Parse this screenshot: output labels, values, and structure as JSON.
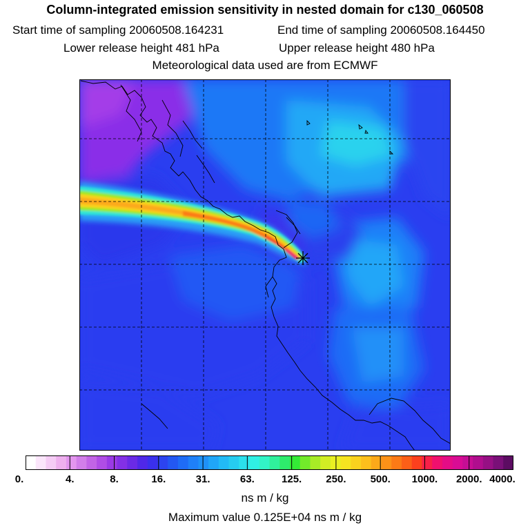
{
  "header": {
    "title": "Column-integrated emission sensitivity in nested domain for c130_060508",
    "start_label": "Start time of sampling 20060508.164231",
    "end_label": "End time of sampling 20060508.164450",
    "lower_label": "Lower release height  481 hPa",
    "upper_label": "Upper release height  480 hPa",
    "met_label": "Meteorological data used are from ECMWF"
  },
  "colorbar": {
    "tick_labels": [
      "0.",
      "4.",
      "8.",
      "16.",
      "31.",
      "63.",
      "125.",
      "250.",
      "500.",
      "1000.",
      "2000.",
      "4000."
    ],
    "colors": [
      "#ffffff",
      "#fbe6fb",
      "#f5ccf5",
      "#eeb0ee",
      "#e396ee",
      "#d27ee9",
      "#c264e6",
      "#b04de6",
      "#9a3ae6",
      "#8330e6",
      "#6a2ae6",
      "#4f28e8",
      "#3a30ec",
      "#2c44f0",
      "#2358f3",
      "#1f6cf6",
      "#1f80f8",
      "#1f92f8",
      "#20a6f8",
      "#22baf6",
      "#26ccf0",
      "#2be0ec",
      "#30f0e4",
      "#32f4c6",
      "#30f09c",
      "#2eec6c",
      "#34ea36",
      "#72ea2a",
      "#a8ec26",
      "#d2ee24",
      "#eaf022",
      "#f6e420",
      "#fad21e",
      "#fcbf1c",
      "#fca91a",
      "#fc9218",
      "#fc7a16",
      "#fc5f18",
      "#fc401e",
      "#f82048",
      "#f0106e",
      "#e40c86",
      "#d80c94",
      "#c60e94",
      "#b00e8e",
      "#961084",
      "#7a1078",
      "#5c0c62"
    ],
    "units": "ns m / kg"
  },
  "footer": {
    "max_label": "Maximum value  0.125E+04 ns m / kg"
  },
  "map": {
    "release_marker": "release-point-cross",
    "gridlines": "dashed"
  }
}
